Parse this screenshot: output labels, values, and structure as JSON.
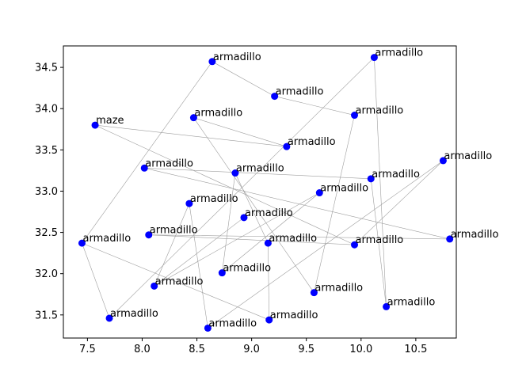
{
  "colors": {
    "point": "#0000ff",
    "edge": "#9e9e9e"
  },
  "chart_data": {
    "type": "scatter",
    "title": "",
    "xlabel": "",
    "ylabel": "",
    "xlim": [
      7.28,
      10.87
    ],
    "ylim": [
      31.22,
      34.76
    ],
    "grid": false,
    "xticks": [
      "7.5",
      "8.0",
      "8.5",
      "9.0",
      "9.5",
      "10.0",
      "10.5"
    ],
    "xtick_values": [
      7.5,
      8.0,
      8.5,
      9.0,
      9.5,
      10.0,
      10.5
    ],
    "yticks": [
      "31.5",
      "32.0",
      "32.5",
      "33.0",
      "33.5",
      "34.0",
      "34.5"
    ],
    "ytick_values": [
      31.5,
      32.0,
      32.5,
      33.0,
      33.5,
      34.0,
      34.5
    ],
    "points": [
      {
        "label": "armadillo",
        "x": 8.64,
        "y": 34.57
      },
      {
        "label": "armadillo",
        "x": 10.12,
        "y": 34.62
      },
      {
        "label": "armadillo",
        "x": 9.21,
        "y": 34.15
      },
      {
        "label": "armadillo",
        "x": 9.94,
        "y": 33.92
      },
      {
        "label": "maze",
        "x": 7.57,
        "y": 33.8
      },
      {
        "label": "armadillo",
        "x": 8.47,
        "y": 33.89
      },
      {
        "label": "armadillo",
        "x": 9.32,
        "y": 33.54
      },
      {
        "label": "armadillo",
        "x": 10.75,
        "y": 33.37
      },
      {
        "label": "armadillo",
        "x": 8.02,
        "y": 33.28
      },
      {
        "label": "armadillo",
        "x": 8.85,
        "y": 33.22
      },
      {
        "label": "armadillo",
        "x": 10.09,
        "y": 33.15
      },
      {
        "label": "armadillo",
        "x": 9.62,
        "y": 32.98
      },
      {
        "label": "armadillo",
        "x": 8.43,
        "y": 32.85
      },
      {
        "label": "armadillo",
        "x": 8.93,
        "y": 32.68
      },
      {
        "label": "armadillo",
        "x": 8.06,
        "y": 32.47
      },
      {
        "label": "armadillo",
        "x": 10.81,
        "y": 32.42
      },
      {
        "label": "armadillo",
        "x": 7.45,
        "y": 32.37
      },
      {
        "label": "armadillo",
        "x": 9.15,
        "y": 32.37
      },
      {
        "label": "armadillo",
        "x": 9.94,
        "y": 32.35
      },
      {
        "label": "armadillo",
        "x": 8.73,
        "y": 32.01
      },
      {
        "label": "armadillo",
        "x": 8.11,
        "y": 31.85
      },
      {
        "label": "armadillo",
        "x": 9.57,
        "y": 31.77
      },
      {
        "label": "armadillo",
        "x": 10.23,
        "y": 31.6
      },
      {
        "label": "armadillo",
        "x": 7.7,
        "y": 31.46
      },
      {
        "label": "armadillo",
        "x": 9.16,
        "y": 31.44
      },
      {
        "label": "armadillo",
        "x": 8.6,
        "y": 31.34
      }
    ],
    "edges": [
      [
        16,
        0
      ],
      [
        0,
        2
      ],
      [
        2,
        3
      ],
      [
        3,
        21
      ],
      [
        21,
        5
      ],
      [
        5,
        6
      ],
      [
        6,
        4
      ],
      [
        4,
        18
      ],
      [
        18,
        14
      ],
      [
        14,
        15
      ],
      [
        15,
        8
      ],
      [
        8,
        10
      ],
      [
        10,
        22
      ],
      [
        22,
        1
      ],
      [
        1,
        23
      ],
      [
        23,
        16
      ],
      [
        16,
        24
      ],
      [
        24,
        17
      ],
      [
        17,
        9
      ],
      [
        9,
        19
      ],
      [
        19,
        11
      ],
      [
        11,
        20
      ],
      [
        20,
        12
      ],
      [
        12,
        25
      ],
      [
        25,
        7
      ],
      [
        7,
        18
      ],
      [
        20,
        13
      ]
    ]
  }
}
